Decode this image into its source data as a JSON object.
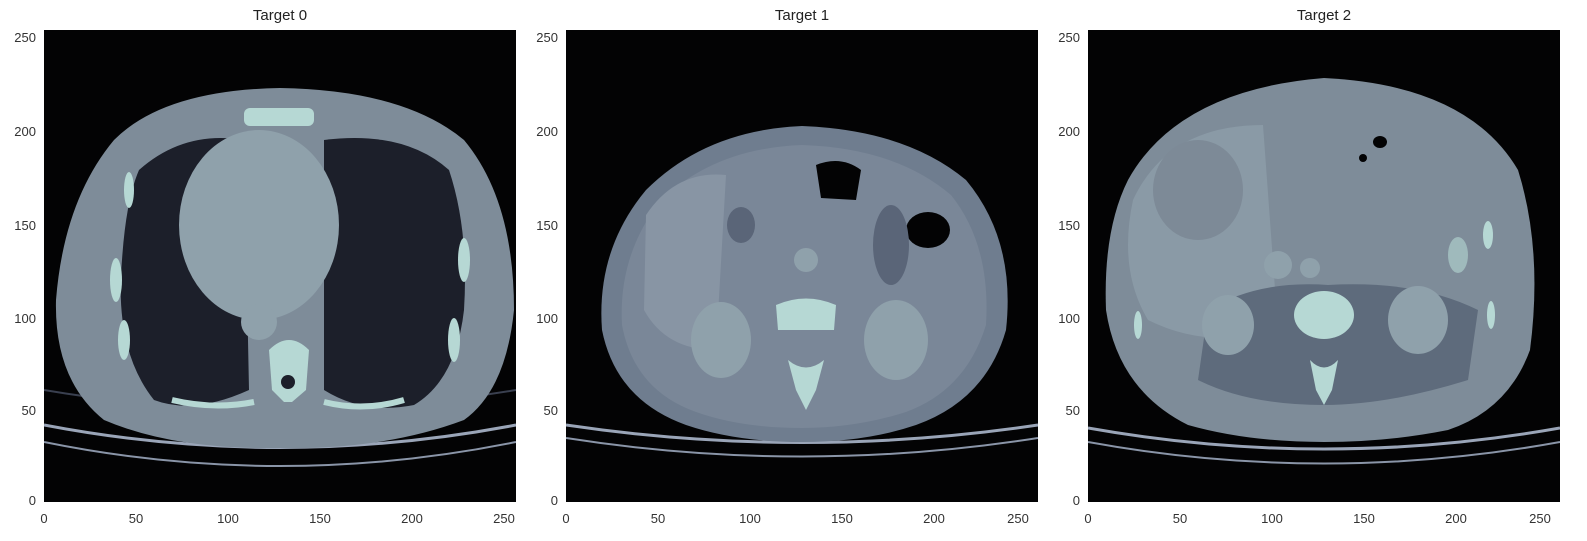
{
  "panels": [
    {
      "title": "Target 0"
    },
    {
      "title": "Target 1"
    },
    {
      "title": "Target 2"
    }
  ],
  "axes": {
    "x_ticks": [
      "0",
      "50",
      "100",
      "150",
      "200",
      "250"
    ],
    "y_ticks": [
      "0",
      "50",
      "100",
      "150",
      "200",
      "250"
    ],
    "range": [
      0,
      256
    ]
  },
  "colors": {
    "background": "#030304",
    "soft_tissue": "#7e8c99",
    "organ": "#8fa1ab",
    "fat": "#5e6b7c",
    "bone": "#b6d8d4",
    "lung": "#1c1f2a"
  }
}
